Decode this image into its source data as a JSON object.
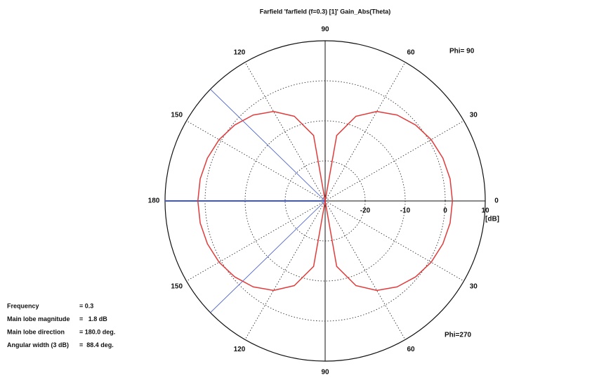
{
  "chart_data": {
    "type": "polar",
    "title": "Farfield 'farfield (f=0.3) [1]' Gain_Abs(Theta)",
    "theta": [
      0,
      10,
      20,
      30,
      40,
      50,
      60,
      70,
      80,
      90,
      100,
      110,
      120,
      130,
      140,
      150,
      160,
      170,
      180,
      190,
      200,
      210,
      220,
      230,
      240,
      250,
      260,
      270,
      280,
      290,
      300,
      310,
      320,
      330,
      340,
      350,
      360
    ],
    "series": [
      {
        "color": "#e23b3b",
        "values": [
          1.8,
          1.7,
          1.3,
          0.6,
          -0.5,
          -2.0,
          -4.2,
          -7.5,
          -13.4,
          -30,
          -13.4,
          -7.5,
          -4.2,
          -2.0,
          -0.5,
          0.6,
          1.3,
          1.7,
          1.8,
          1.7,
          1.3,
          0.6,
          -0.5,
          -2.0,
          -4.2,
          -7.5,
          -13.4,
          -30,
          -13.4,
          -7.5,
          -4.2,
          -2.0,
          -0.5,
          0.6,
          1.3,
          1.7,
          1.8
        ]
      }
    ],
    "rlim": [
      -30,
      10
    ],
    "rticks": [
      -20,
      -10,
      0,
      10
    ],
    "r_unit": "[dB]",
    "thetaticks": [
      0,
      30,
      60,
      90,
      120,
      150,
      180,
      {
        "value": 210,
        "label": "150"
      },
      {
        "value": 240,
        "label": "120"
      },
      {
        "value": 270,
        "label": "90"
      },
      {
        "value": 300,
        "label": "60"
      },
      {
        "value": 330,
        "label": "30"
      }
    ],
    "beam_lines": [
      180,
      135.8,
      224.2
    ],
    "beam_color": "#3c57c9",
    "phi_labels": [
      "Phi= 90",
      "Phi=270"
    ],
    "info": [
      {
        "label": "Frequency",
        "value": "= 0.3"
      },
      {
        "label": "Main lobe magnitude",
        "value": "=   1.8 dB"
      },
      {
        "label": "Main lobe direction",
        "value": "= 180.0 deg."
      },
      {
        "label": "Angular width (3 dB)",
        "value": "=  88.4 deg."
      }
    ],
    "grid": true
  }
}
